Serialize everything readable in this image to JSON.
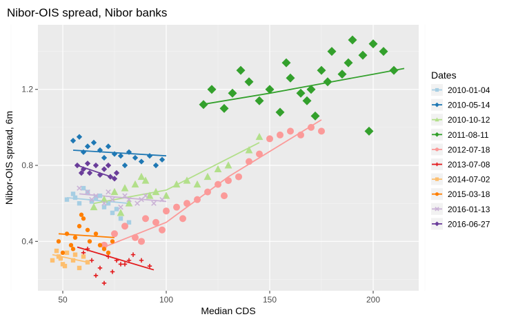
{
  "chart_data": {
    "type": "scatter",
    "title": "Nibor-OIS spread, Nibor banks",
    "xlabel": "Median CDS",
    "ylabel": "Nibor-OIS spread, 6m",
    "xlim": [
      38,
      222
    ],
    "ylim": [
      0.14,
      1.54
    ],
    "x_ticks": [
      50,
      100,
      150,
      200
    ],
    "x_tick_labels": [
      "50",
      "100",
      "150",
      "200"
    ],
    "y_ticks": [
      0.4,
      0.8,
      1.2
    ],
    "y_tick_labels": [
      "0.4",
      "0.8",
      "1.2"
    ],
    "grid": true,
    "background": "#ebebeb",
    "legend": {
      "title": "Dates",
      "position": "right"
    },
    "series": [
      {
        "name": "2010-01-04",
        "color": "#a6cee3",
        "shape": "square",
        "points": [
          [
            52,
            0.62
          ],
          [
            55,
            0.65
          ],
          [
            58,
            0.6
          ],
          [
            62,
            0.66
          ],
          [
            66,
            0.63
          ],
          [
            70,
            0.58
          ],
          [
            74,
            0.55
          ],
          [
            78,
            0.52
          ],
          [
            82,
            0.5
          ],
          [
            60,
            0.68
          ],
          [
            64,
            0.61
          ],
          [
            68,
            0.64
          ],
          [
            72,
            0.6
          ],
          [
            76,
            0.57
          ],
          [
            56,
            0.63
          ]
        ],
        "fit": [
          [
            52,
            0.63
          ],
          [
            82,
            0.6
          ]
        ]
      },
      {
        "name": "2010-05-14",
        "color": "#1f78b4",
        "shape": "diamond",
        "points": [
          [
            55,
            0.93
          ],
          [
            58,
            0.95
          ],
          [
            62,
            0.9
          ],
          [
            65,
            0.92
          ],
          [
            68,
            0.88
          ],
          [
            72,
            0.9
          ],
          [
            75,
            0.86
          ],
          [
            78,
            0.85
          ],
          [
            82,
            0.87
          ],
          [
            85,
            0.84
          ],
          [
            88,
            0.82
          ],
          [
            92,
            0.85
          ],
          [
            95,
            0.8
          ],
          [
            98,
            0.83
          ],
          [
            60,
            0.87
          ],
          [
            70,
            0.84
          ],
          [
            80,
            0.8
          ]
        ],
        "fit": [
          [
            55,
            0.88
          ],
          [
            100,
            0.85
          ]
        ]
      },
      {
        "name": "2010-10-12",
        "color": "#b2df8a",
        "shape": "triangle",
        "points": [
          [
            65,
            0.58
          ],
          [
            70,
            0.62
          ],
          [
            75,
            0.66
          ],
          [
            80,
            0.68
          ],
          [
            85,
            0.7
          ],
          [
            90,
            0.72
          ],
          [
            95,
            0.66
          ],
          [
            100,
            0.64
          ],
          [
            105,
            0.7
          ],
          [
            110,
            0.72
          ],
          [
            115,
            0.7
          ],
          [
            120,
            0.74
          ],
          [
            125,
            0.78
          ],
          [
            130,
            0.8
          ],
          [
            140,
            0.88
          ],
          [
            145,
            0.95
          ],
          [
            78,
            0.55
          ],
          [
            82,
            0.6
          ],
          [
            88,
            0.74
          ],
          [
            92,
            0.64
          ]
        ],
        "fit": [
          [
            65,
            0.6
          ],
          [
            100,
            0.67
          ],
          [
            145,
            0.92
          ]
        ]
      },
      {
        "name": "2011-08-11",
        "color": "#33a02c",
        "shape": "diamond",
        "points": [
          [
            118,
            1.12
          ],
          [
            122,
            1.2
          ],
          [
            128,
            1.1
          ],
          [
            132,
            1.18
          ],
          [
            136,
            1.3
          ],
          [
            140,
            1.24
          ],
          [
            145,
            1.14
          ],
          [
            150,
            1.2
          ],
          [
            155,
            1.08
          ],
          [
            160,
            1.26
          ],
          [
            165,
            1.18
          ],
          [
            170,
            1.2
          ],
          [
            175,
            1.3
          ],
          [
            180,
            1.4
          ],
          [
            185,
            1.28
          ],
          [
            190,
            1.46
          ],
          [
            195,
            1.38
          ],
          [
            200,
            1.44
          ],
          [
            205,
            1.4
          ],
          [
            210,
            1.3
          ],
          [
            172,
            1.06
          ],
          [
            178,
            1.24
          ],
          [
            188,
            1.34
          ],
          [
            198,
            0.98
          ],
          [
            168,
            1.14
          ],
          [
            158,
            1.34
          ]
        ],
        "fit": [
          [
            117,
            1.12
          ],
          [
            150,
            1.18
          ],
          [
            175,
            1.23
          ],
          [
            200,
            1.28
          ],
          [
            215,
            1.31
          ]
        ]
      },
      {
        "name": "2012-07-18",
        "color": "#fb9a99",
        "shape": "circle",
        "points": [
          [
            70,
            0.38
          ],
          [
            75,
            0.44
          ],
          [
            80,
            0.48
          ],
          [
            85,
            0.42
          ],
          [
            90,
            0.52
          ],
          [
            95,
            0.5
          ],
          [
            100,
            0.56
          ],
          [
            105,
            0.58
          ],
          [
            110,
            0.6
          ],
          [
            115,
            0.62
          ],
          [
            120,
            0.66
          ],
          [
            125,
            0.7
          ],
          [
            130,
            0.72
          ],
          [
            135,
            0.74
          ],
          [
            140,
            0.82
          ],
          [
            145,
            0.86
          ],
          [
            150,
            0.94
          ],
          [
            155,
            0.96
          ],
          [
            160,
            0.98
          ],
          [
            165,
            0.96
          ],
          [
            170,
            1.0
          ],
          [
            175,
            0.98
          ],
          [
            88,
            0.4
          ],
          [
            98,
            0.46
          ],
          [
            108,
            0.52
          ],
          [
            128,
            0.64
          ]
        ],
        "fit": [
          [
            70,
            0.37
          ],
          [
            100,
            0.5
          ],
          [
            130,
            0.74
          ],
          [
            175,
            1.04
          ]
        ]
      },
      {
        "name": "2013-07-08",
        "color": "#e31a1c",
        "shape": "plus",
        "points": [
          [
            60,
            0.34
          ],
          [
            64,
            0.3
          ],
          [
            68,
            0.26
          ],
          [
            72,
            0.32
          ],
          [
            76,
            0.3
          ],
          [
            80,
            0.28
          ],
          [
            84,
            0.33
          ],
          [
            88,
            0.3
          ],
          [
            92,
            0.27
          ],
          [
            66,
            0.22
          ],
          [
            70,
            0.18
          ],
          [
            74,
            0.24
          ],
          [
            78,
            0.28
          ],
          [
            82,
            0.3
          ],
          [
            62,
            0.36
          ]
        ],
        "fit": [
          [
            57,
            0.37
          ],
          [
            94,
            0.25
          ]
        ]
      },
      {
        "name": "2014-07-02",
        "color": "#fdbf6f",
        "shape": "square",
        "points": [
          [
            45,
            0.3
          ],
          [
            48,
            0.32
          ],
          [
            50,
            0.28
          ],
          [
            52,
            0.34
          ],
          [
            55,
            0.3
          ],
          [
            58,
            0.26
          ],
          [
            60,
            0.32
          ],
          [
            47,
            0.35
          ],
          [
            51,
            0.27
          ],
          [
            56,
            0.33
          ],
          [
            62,
            0.29
          ],
          [
            49,
            0.31
          ]
        ],
        "fit": [
          [
            45,
            0.33
          ],
          [
            62,
            0.29
          ]
        ]
      },
      {
        "name": "2015-03-18",
        "color": "#ff7f00",
        "shape": "circle",
        "points": [
          [
            48,
            0.4
          ],
          [
            52,
            0.44
          ],
          [
            55,
            0.36
          ],
          [
            58,
            0.48
          ],
          [
            60,
            0.52
          ],
          [
            63,
            0.4
          ],
          [
            66,
            0.44
          ],
          [
            70,
            0.36
          ],
          [
            74,
            0.4
          ],
          [
            50,
            0.34
          ],
          [
            56,
            0.42
          ],
          [
            62,
            0.46
          ],
          [
            68,
            0.38
          ],
          [
            72,
            0.34
          ],
          [
            59,
            0.54
          ],
          [
            54,
            0.38
          ]
        ],
        "fit": [
          [
            48,
            0.44
          ],
          [
            75,
            0.42
          ]
        ]
      },
      {
        "name": "2016-01-13",
        "color": "#cab2d6",
        "shape": "cross",
        "points": [
          [
            58,
            0.68
          ],
          [
            62,
            0.66
          ],
          [
            66,
            0.64
          ],
          [
            70,
            0.6
          ],
          [
            74,
            0.62
          ],
          [
            78,
            0.58
          ],
          [
            82,
            0.62
          ],
          [
            86,
            0.6
          ],
          [
            90,
            0.64
          ],
          [
            94,
            0.6
          ],
          [
            98,
            0.62
          ],
          [
            64,
            0.62
          ],
          [
            72,
            0.66
          ],
          [
            80,
            0.64
          ],
          [
            88,
            0.62
          ]
        ],
        "fit": [
          [
            58,
            0.65
          ],
          [
            100,
            0.61
          ]
        ]
      },
      {
        "name": "2016-06-27",
        "color": "#6a3d9a",
        "shape": "diamond",
        "points": [
          [
            57,
            0.8
          ],
          [
            60,
            0.78
          ],
          [
            63,
            0.76
          ],
          [
            66,
            0.8
          ],
          [
            70,
            0.78
          ],
          [
            73,
            0.74
          ],
          [
            76,
            0.76
          ],
          [
            59,
            0.76
          ],
          [
            62,
            0.81
          ],
          [
            68,
            0.75
          ],
          [
            72,
            0.8
          ],
          [
            75,
            0.73
          ]
        ],
        "fit": [
          [
            57,
            0.8
          ],
          [
            76,
            0.73
          ]
        ]
      }
    ]
  }
}
